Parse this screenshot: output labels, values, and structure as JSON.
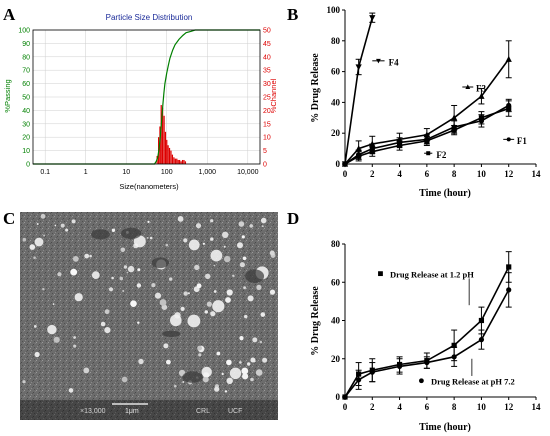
{
  "panels": {
    "A": "A",
    "B": "B",
    "C": "C",
    "D": "D"
  },
  "colors": {
    "passing": "#008000",
    "channel": "#dd0000",
    "title_blue": "#1a2a99",
    "axis": "#000000",
    "grid": "#cfcfcf"
  },
  "chart_data": [
    {
      "id": "A",
      "type": "bar",
      "title": "Particle Size Distribution",
      "xlabel": "Size(nanometers)",
      "ylabel_left": "%Passing",
      "ylabel_right": "%Channel",
      "x_scale": "log",
      "xlim": [
        0.05,
        20000
      ],
      "x_ticks": [
        0.1,
        1,
        10,
        100,
        1000,
        10000
      ],
      "x_tick_labels": [
        "0.1",
        "1",
        "10",
        "100",
        "1,000",
        "10,000"
      ],
      "ylim_left": [
        0,
        100
      ],
      "y_ticks_left": [
        0,
        10,
        20,
        30,
        40,
        50,
        60,
        70,
        80,
        90,
        100
      ],
      "y_tick_labels_left": [
        "0",
        "10",
        "20",
        "30",
        "40",
        "50",
        "60",
        "70",
        "80",
        "90",
        "100"
      ],
      "ylim_right": [
        0,
        50
      ],
      "y_ticks_right": [
        0,
        5,
        10,
        15,
        20,
        25,
        30,
        35,
        40,
        45,
        50
      ],
      "y_tick_labels_right": [
        "0",
        "5",
        "10",
        "15",
        "20",
        "25",
        "30",
        "35",
        "40",
        "45",
        "50"
      ],
      "grid": true,
      "channel_bars": {
        "x": [
          58,
          63,
          68,
          73,
          79,
          86,
          93,
          100,
          108,
          117,
          127,
          138,
          150,
          163,
          177,
          192,
          208,
          226,
          245,
          266,
          289
        ],
        "values": [
          3,
          10,
          14,
          22,
          21,
          18,
          12,
          9,
          7,
          6,
          5,
          3.5,
          2.5,
          2,
          2,
          1.5,
          1.5,
          1,
          1.5,
          1.5,
          1
        ]
      },
      "passing_line": {
        "x": [
          0.05,
          50,
          55,
          60,
          65,
          70,
          75,
          80,
          85,
          90,
          100,
          110,
          120,
          140,
          160,
          200,
          250,
          300,
          400,
          500,
          20000
        ],
        "y": [
          0,
          0,
          2,
          5,
          12,
          22,
          33,
          44,
          53,
          60,
          68,
          74,
          79,
          85,
          89,
          93,
          96,
          98,
          99,
          100,
          100
        ]
      }
    },
    {
      "id": "B",
      "type": "line",
      "xlabel": "Time (hour)",
      "ylabel": "% Drug Release",
      "xlim": [
        0,
        14
      ],
      "ylim": [
        0,
        100
      ],
      "x_ticks": [
        0,
        2,
        4,
        6,
        8,
        10,
        12,
        14
      ],
      "y_ticks": [
        0,
        20,
        40,
        60,
        80,
        100
      ],
      "grid": false,
      "series": [
        {
          "name": "F4",
          "x": [
            0,
            1,
            2
          ],
          "y": [
            0,
            63,
            95
          ],
          "err": [
            0,
            5,
            3
          ],
          "marker": "triangle-down"
        },
        {
          "name": "F3",
          "x": [
            0,
            1,
            2,
            4,
            6,
            8,
            10,
            12
          ],
          "y": [
            0,
            10,
            13,
            16,
            19,
            30,
            44,
            68
          ],
          "err": [
            0,
            5,
            5,
            4,
            4,
            8,
            5,
            12
          ],
          "marker": "triangle-up"
        },
        {
          "name": "F2",
          "x": [
            0,
            1,
            2,
            4,
            6,
            8,
            10,
            12
          ],
          "y": [
            0,
            5,
            8,
            12,
            15,
            22,
            30,
            36
          ],
          "err": [
            0,
            3,
            3,
            3,
            3,
            3,
            4,
            5
          ],
          "marker": "square"
        },
        {
          "name": "F1",
          "x": [
            0,
            1,
            2,
            4,
            6,
            8,
            10,
            12
          ],
          "y": [
            0,
            6,
            10,
            14,
            16,
            24,
            28,
            38
          ],
          "err": [
            0,
            3,
            3,
            3,
            3,
            4,
            4,
            4
          ],
          "marker": "circle"
        }
      ],
      "series_labels": [
        {
          "text": "F4",
          "x": 3.2,
          "y": 66,
          "lx1": 2.0,
          "lx2": 2.9,
          "ly": 67
        },
        {
          "text": "F3",
          "x": 9.6,
          "y": 49,
          "lx1": 8.6,
          "lx2": 9.4,
          "ly": 50
        },
        {
          "text": "F2",
          "x": 6.7,
          "y": 6,
          "lx1": 5.8,
          "lx2": 6.4,
          "ly": 7
        },
        {
          "text": "F1",
          "x": 12.6,
          "y": 15,
          "lx1": 11.6,
          "lx2": 12.4,
          "ly": 16
        }
      ]
    },
    {
      "id": "D",
      "type": "line",
      "xlabel": "Time (hour)",
      "ylabel": "% Drug Release",
      "xlim": [
        0,
        14
      ],
      "ylim": [
        0,
        80
      ],
      "x_ticks": [
        0,
        2,
        4,
        6,
        8,
        10,
        12,
        14
      ],
      "y_ticks": [
        0,
        20,
        40,
        60,
        80
      ],
      "grid": false,
      "series": [
        {
          "name": "Drug Release at 1.2 pH",
          "x": [
            0,
            1,
            2,
            4,
            6,
            8,
            10,
            12
          ],
          "y": [
            0,
            12,
            14,
            17,
            19,
            27,
            40,
            68
          ],
          "err": [
            0,
            6,
            6,
            4,
            4,
            8,
            7,
            8
          ],
          "marker": "square"
        },
        {
          "name": "Drug Release at pH 7.2",
          "x": [
            0,
            1,
            2,
            4,
            6,
            8,
            10,
            12
          ],
          "y": [
            0,
            9,
            13,
            16,
            18,
            21,
            30,
            56
          ],
          "err": [
            0,
            5,
            5,
            4,
            3,
            5,
            5,
            9
          ],
          "marker": "circle"
        }
      ],
      "series_labels": [
        {
          "text": "Drug Release at 1.2 pH",
          "x": 3.3,
          "y": 64,
          "mx": 2.6,
          "my": 64.5,
          "lx1": 9.1,
          "ly1": 62,
          "lx2": 9.1,
          "ly2": 48
        },
        {
          "text": "Drug Release at pH 7.2",
          "x": 6.3,
          "y": 8,
          "mx": 5.6,
          "my": 8.5,
          "lx1": 9.3,
          "ly1": 11,
          "lx2": 9.3,
          "ly2": 20
        }
      ]
    }
  ],
  "image_c": {
    "scalebar_label": "1μm",
    "info_text": [
      "×13,000",
      "CRL",
      "UCF"
    ]
  }
}
